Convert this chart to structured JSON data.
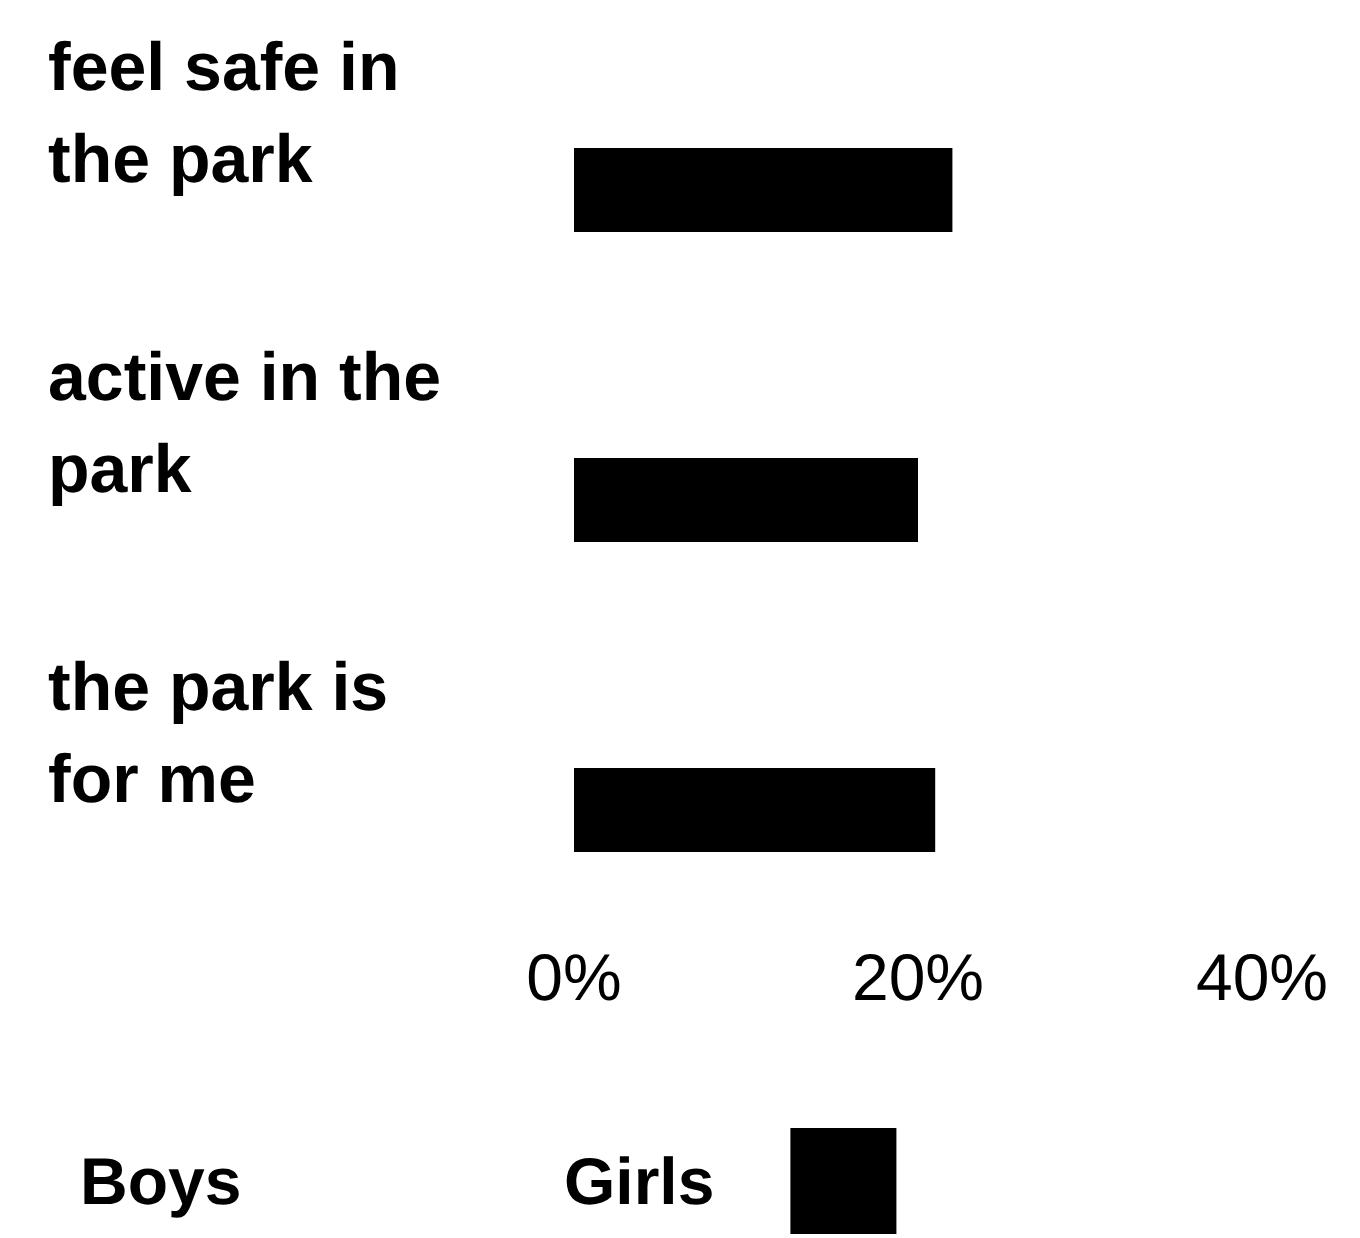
{
  "chart_data": {
    "type": "bar",
    "orientation": "horizontal",
    "categories": [
      "feel safe in the park",
      "active in the park",
      "the park is for me"
    ],
    "series": [
      {
        "name": "Boys",
        "values": [
          null,
          null,
          null
        ]
      },
      {
        "name": "Girls",
        "color": "#000000",
        "values": [
          22,
          20,
          21
        ]
      }
    ],
    "xlim": [
      0,
      40
    ],
    "xticks": [
      {
        "value": 0,
        "label": "0%"
      },
      {
        "value": 20,
        "label": "20%"
      },
      {
        "value": 40,
        "label": "40%"
      }
    ],
    "legend": "bottom"
  }
}
